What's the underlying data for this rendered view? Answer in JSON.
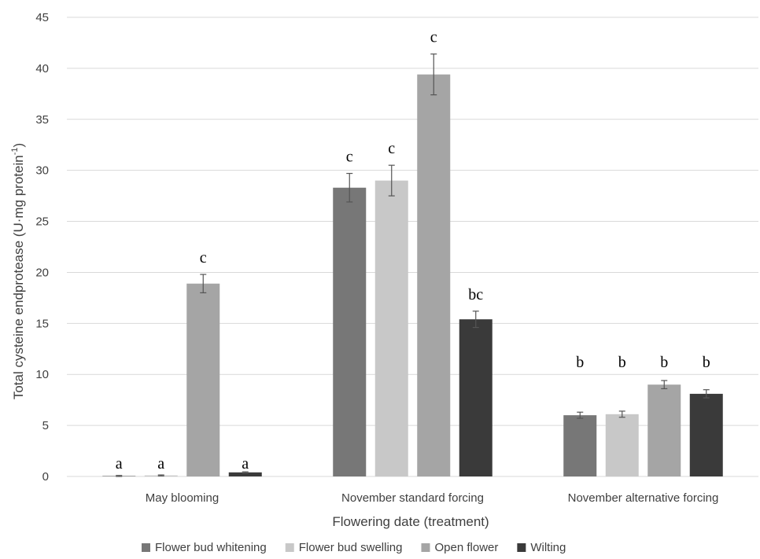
{
  "chart_data": {
    "type": "bar",
    "title": "",
    "xlabel": "Flowering date (treatment)",
    "ylabel": "Total cysteine endprotease (U·mg protein",
    "ylabel_sup": "-1",
    "ylabel_close": ")",
    "ylim": [
      0,
      45
    ],
    "yticks": [
      0,
      5,
      10,
      15,
      20,
      25,
      30,
      35,
      40,
      45
    ],
    "grid": true,
    "legend_position": "bottom",
    "categories": [
      "May blooming",
      "November standard forcing",
      "November alternative forcing"
    ],
    "series": [
      {
        "name": "Flower bud whitening",
        "color": "#777777",
        "values": [
          0.05,
          28.3,
          6.0
        ],
        "errors": [
          0.05,
          1.4,
          0.3
        ],
        "labels": [
          "a",
          "c",
          "b"
        ]
      },
      {
        "name": "Flower bud swelling",
        "color": "#c8c8c8",
        "values": [
          0.1,
          29.0,
          6.1
        ],
        "errors": [
          0.05,
          1.5,
          0.3
        ],
        "labels": [
          "a",
          "c",
          "b"
        ]
      },
      {
        "name": "Open flower",
        "color": "#a5a5a5",
        "values": [
          18.9,
          39.4,
          9.0
        ],
        "errors": [
          0.9,
          2.0,
          0.4
        ],
        "labels": [
          "c",
          "c",
          "b"
        ]
      },
      {
        "name": "Wilting",
        "color": "#3a3a3a",
        "values": [
          0.4,
          15.4,
          8.1
        ],
        "errors": [
          0.05,
          0.8,
          0.4
        ],
        "labels": [
          "a",
          "bc",
          "b"
        ]
      }
    ]
  }
}
